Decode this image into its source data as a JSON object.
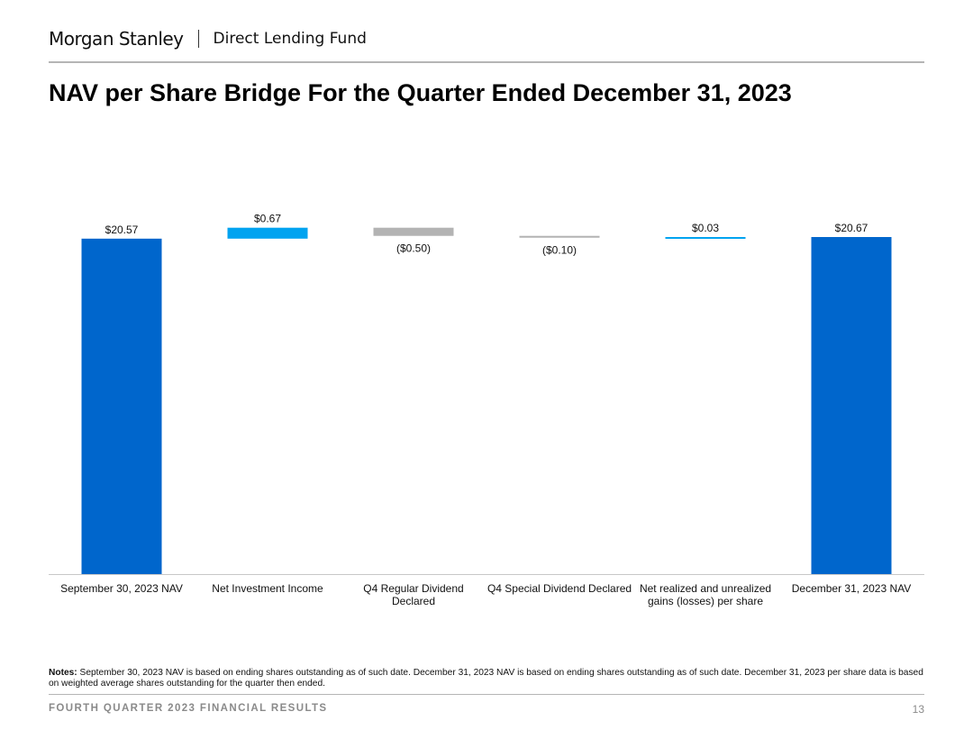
{
  "header": {
    "brand": "Morgan Stanley",
    "fund_name": "Direct Lending Fund"
  },
  "page_title": "NAV per Share Bridge For the Quarter Ended December 31, 2023",
  "colors": {
    "dark_blue": "#0066CC",
    "light_blue": "#00A3F0",
    "gray": "#B3B3B3"
  },
  "chart_data": {
    "type": "bar",
    "subtype": "waterfall",
    "title": "NAV per Share Bridge For the Quarter Ended December 31, 2023",
    "categories": [
      [
        "September 30, 2023 NAV"
      ],
      [
        "Net Investment Income"
      ],
      [
        "Q4 Regular Dividend",
        "Declared"
      ],
      [
        "Q4 Special Dividend Declared"
      ],
      [
        "Net realized and unrealized",
        "gains (losses) per share"
      ],
      [
        "December 31, 2023 NAV"
      ]
    ],
    "values": [
      20.57,
      0.67,
      -0.5,
      -0.1,
      0.03,
      20.67
    ],
    "kinds": [
      "total",
      "delta",
      "delta",
      "delta",
      "delta",
      "total"
    ],
    "value_labels": [
      "$20.57",
      "$0.67",
      "($0.50)",
      "($0.10)",
      "$0.03",
      "$20.67"
    ],
    "series_colors": [
      "#0066CC",
      "#00A3F0",
      "#B3B3B3",
      "#B3B3B3",
      "#00A3F0",
      "#0066CC"
    ],
    "ylim": [
      0,
      20.67
    ]
  },
  "notes": {
    "label": "Notes:",
    "text": "September 30, 2023 NAV is based on ending shares outstanding as of such date. December 31, 2023 NAV is based on ending shares outstanding as of such date. December 31, 2023 per share data is based on weighted  average shares outstanding for the quarter then ended."
  },
  "footer": {
    "section": "FOURTH QUARTER 2023 FINANCIAL RESULTS",
    "page_number": "13"
  }
}
